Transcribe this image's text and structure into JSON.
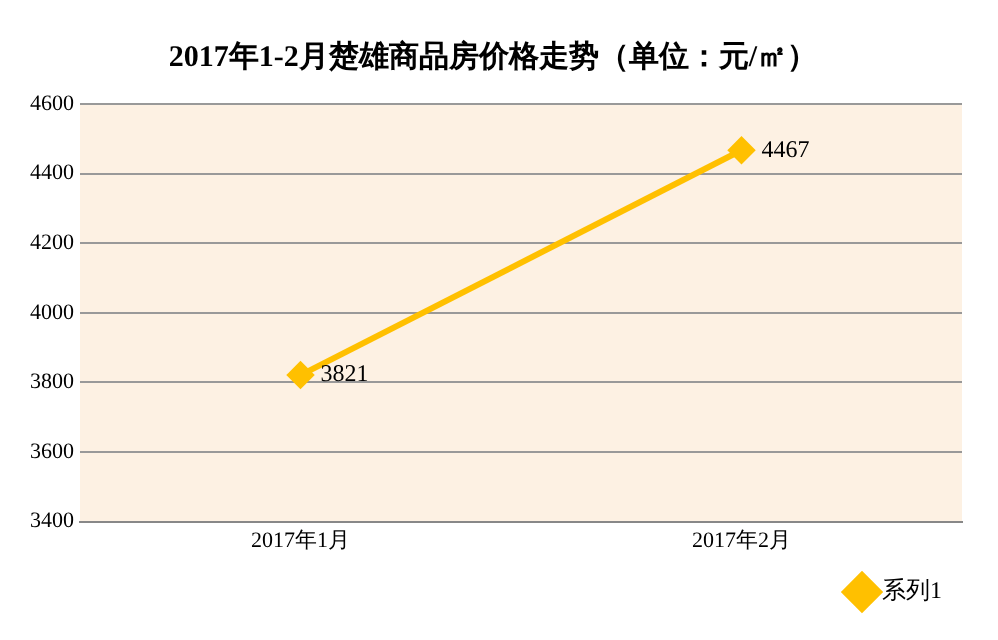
{
  "chart_data": {
    "type": "line",
    "title": "2017年1-2月楚雄商品房价格走势（单位：元/㎡）",
    "categories": [
      "2017年1月",
      "2017年2月"
    ],
    "series": [
      {
        "name": "系列1",
        "color": "#ffc000",
        "values": [
          3821,
          4467
        ]
      }
    ],
    "ylim": [
      3400,
      4600
    ],
    "yticks": [
      3400,
      3600,
      3800,
      4000,
      4200,
      4400,
      4600
    ],
    "grid": "y",
    "legend": "bottom right",
    "marker": "diamond",
    "line_style": "solid",
    "data_labels": true
  }
}
